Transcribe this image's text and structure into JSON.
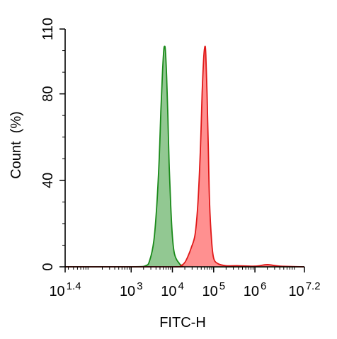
{
  "chart_data": {
    "type": "area",
    "xlabel": "FITC-H",
    "ylabel": "Count  (%)",
    "xscale": "log",
    "xlim_log10": [
      1.4,
      7.2
    ],
    "ylim": [
      0,
      110
    ],
    "y_ticks": [
      0,
      40,
      80,
      110
    ],
    "x_ticks": [
      {
        "log10": 1.4,
        "base": "10",
        "exp": "1.4"
      },
      {
        "log10": 3,
        "base": "10",
        "exp": "3"
      },
      {
        "log10": 4,
        "base": "10",
        "exp": "4"
      },
      {
        "log10": 5,
        "base": "10",
        "exp": "5"
      },
      {
        "log10": 6,
        "base": "10",
        "exp": "6"
      },
      {
        "log10": 7.2,
        "base": "10",
        "exp": "7.2"
      }
    ],
    "grid": false,
    "legend": "none",
    "series": [
      {
        "color": "#1a8a1a",
        "fill": "#8cc58c",
        "x_log10": [
          1.4,
          3.0,
          3.35,
          3.45,
          3.55,
          3.62,
          3.68,
          3.72,
          3.76,
          3.79,
          3.81,
          3.83,
          3.86,
          3.89,
          3.92,
          3.96,
          4.0,
          4.05,
          4.15,
          4.3,
          5.0,
          7.2
        ],
        "y": [
          0,
          0,
          0.5,
          3,
          12,
          28,
          50,
          72,
          90,
          100,
          102,
          100,
          88,
          70,
          48,
          28,
          14,
          6,
          2,
          0.5,
          0,
          0
        ]
      },
      {
        "color": "#e01818",
        "fill": "#ff8a8a",
        "x_log10": [
          1.4,
          4.0,
          4.2,
          4.3,
          4.38,
          4.46,
          4.55,
          4.62,
          4.68,
          4.72,
          4.76,
          4.79,
          4.81,
          4.84,
          4.87,
          4.9,
          4.95,
          5.0,
          5.1,
          5.3,
          5.6,
          6.0,
          6.3,
          6.6,
          7.2
        ],
        "y": [
          0,
          0,
          0.5,
          2,
          5,
          9,
          15,
          30,
          55,
          80,
          97,
          102,
          98,
          80,
          55,
          30,
          12,
          4,
          1.5,
          0.5,
          0.5,
          0.3,
          1,
          0.3,
          0
        ]
      }
    ]
  }
}
